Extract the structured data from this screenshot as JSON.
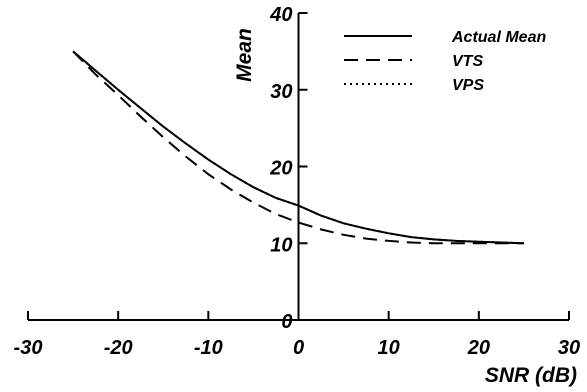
{
  "chart_data": {
    "type": "line",
    "title": "",
    "xlabel": "SNR (dB)",
    "ylabel": "Mean",
    "xlim": [
      -30,
      30
    ],
    "ylim": [
      0,
      40
    ],
    "x_ticks": [
      -30,
      -20,
      -10,
      0,
      10,
      20,
      30
    ],
    "y_ticks": [
      0,
      10,
      20,
      30,
      40
    ],
    "x_tick_labels": [
      "-30",
      "-20",
      "-10",
      "0",
      "10",
      "20",
      "30"
    ],
    "y_tick_labels": [
      "0",
      "10",
      "20",
      "30",
      "40"
    ],
    "grid": false,
    "legend_position": "top-right",
    "series": [
      {
        "name": "Actual Mean",
        "style": "solid",
        "color": "#000000",
        "x": [
          -25,
          -22.5,
          -20,
          -17.5,
          -15,
          -12.5,
          -10,
          -7.5,
          -5,
          -2.5,
          0,
          2.5,
          5,
          7.5,
          10,
          12.5,
          15,
          17.5,
          20,
          22.5,
          25
        ],
        "y": [
          35.0,
          32.5,
          30.0,
          27.6,
          25.2,
          23.0,
          20.9,
          19.0,
          17.3,
          15.9,
          14.9,
          13.6,
          12.6,
          11.9,
          11.3,
          10.8,
          10.5,
          10.3,
          10.2,
          10.1,
          10.0
        ]
      },
      {
        "name": "VTS",
        "style": "dashed",
        "color": "#000000",
        "x": [
          -25,
          -22.5,
          -20,
          -17.5,
          -15,
          -12.5,
          -10,
          -7.5,
          -5,
          -2.5,
          0,
          2.5,
          5,
          7.5,
          10,
          12.5,
          15,
          17.5,
          20,
          22.5,
          25
        ],
        "y": [
          35.0,
          32.0,
          29.3,
          26.5,
          23.8,
          21.3,
          19.0,
          17.0,
          15.3,
          13.8,
          12.7,
          11.8,
          11.1,
          10.6,
          10.3,
          10.1,
          10.0,
          10.0,
          10.0,
          10.0,
          10.0
        ]
      },
      {
        "name": "VPS",
        "style": "dotted",
        "color": "#000000",
        "x": [
          -25,
          -22.5,
          -20,
          -17.5,
          -15,
          -12.5,
          -10,
          -7.5,
          -5,
          -2.5,
          0,
          2.5,
          5,
          7.5,
          10,
          12.5,
          15,
          17.5,
          20,
          22.5,
          25
        ],
        "y": [
          35.0,
          32.5,
          30.0,
          27.6,
          25.2,
          23.0,
          20.9,
          19.0,
          17.3,
          15.9,
          14.9,
          13.6,
          12.6,
          11.9,
          11.3,
          10.8,
          10.5,
          10.3,
          10.2,
          10.1,
          10.0
        ]
      }
    ]
  }
}
